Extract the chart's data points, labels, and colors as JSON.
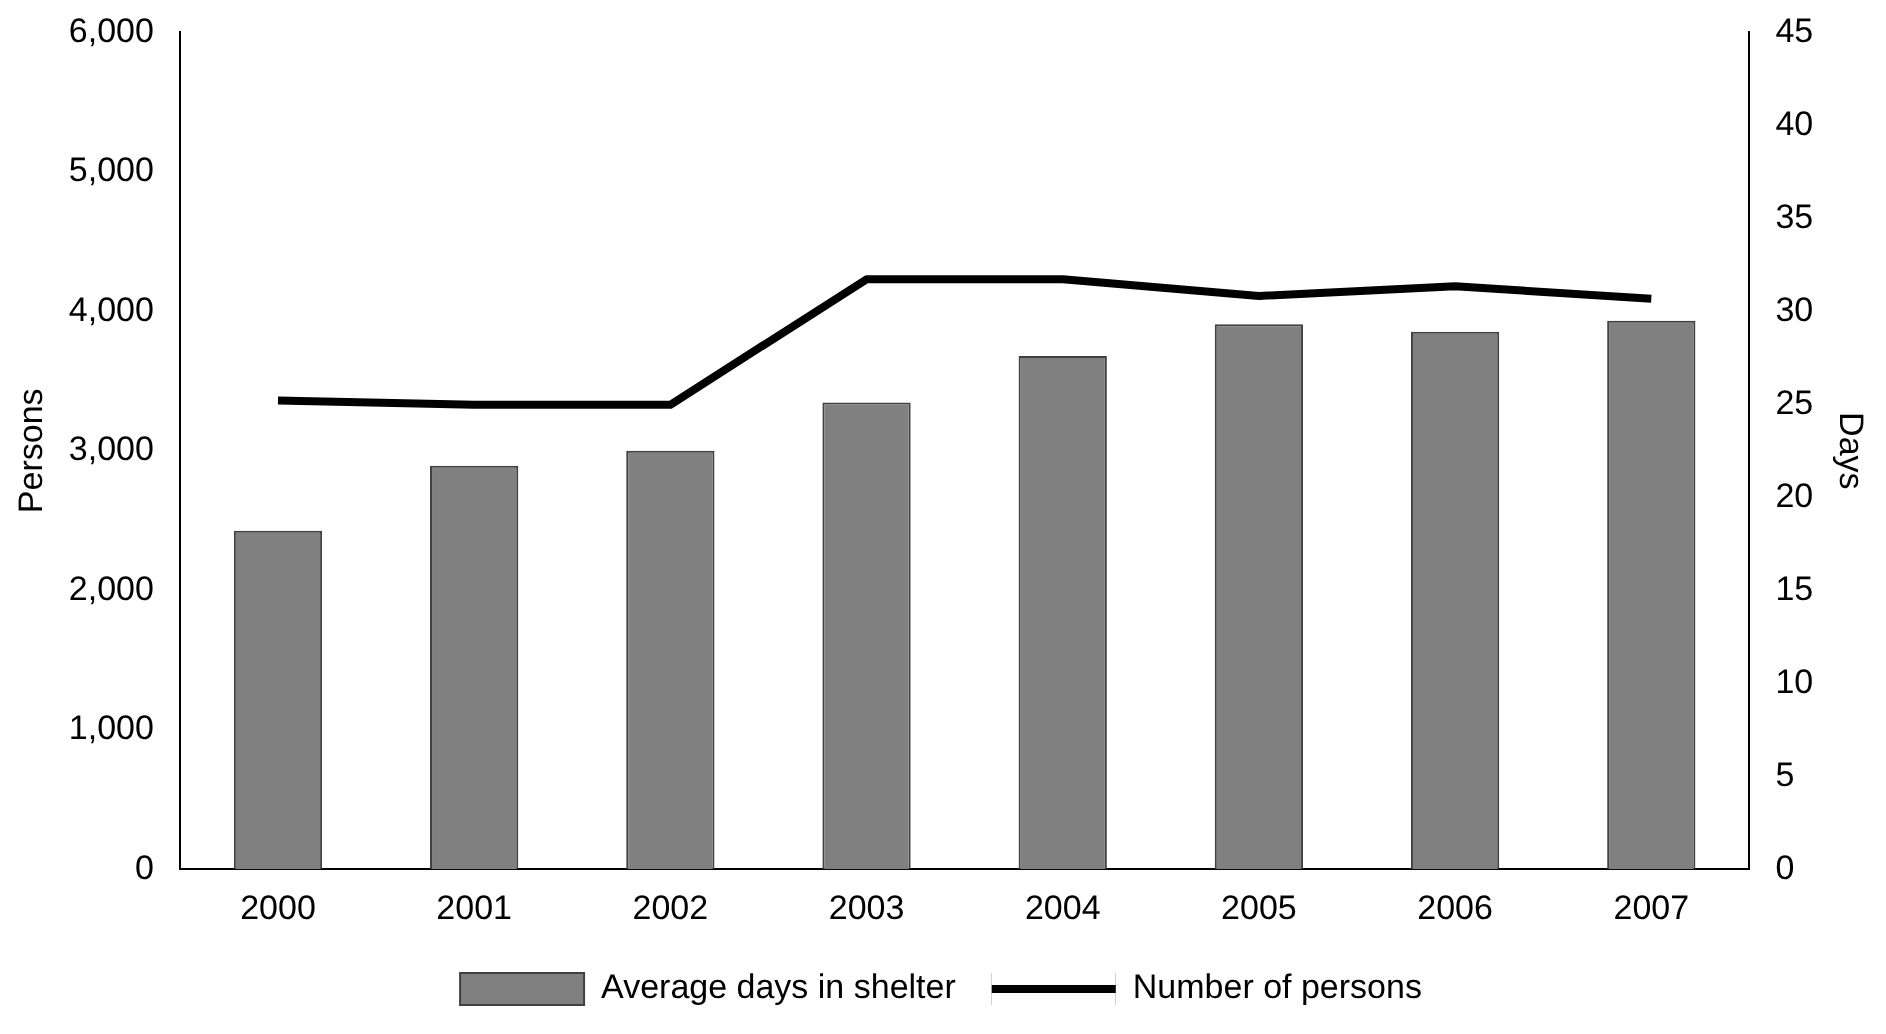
{
  "chart_data": {
    "type": "bar",
    "ylabel": "Persons",
    "y2label": "Days",
    "categories": [
      "2000",
      "2001",
      "2002",
      "2003",
      "2004",
      "2005",
      "2006",
      "2007"
    ],
    "series": [
      {
        "name": "Average days in shelter",
        "axis": "y2",
        "color": "#808080",
        "values": [
          18.2,
          21.7,
          22.5,
          25.1,
          27.6,
          29.3,
          28.9,
          29.5
        ]
      },
      {
        "name": "Number of persons",
        "type": "line",
        "axis": "y",
        "color": "#000000",
        "values": [
          3360,
          3330,
          3330,
          4230,
          4230,
          4110,
          4180,
          4090
        ]
      }
    ],
    "ylim": [
      0,
      6000
    ],
    "yticks": [
      {
        "value": 0,
        "label": "0"
      },
      {
        "value": 1000,
        "label": "1,000"
      },
      {
        "value": 2000,
        "label": "2,000"
      },
      {
        "value": 3000,
        "label": "3,000"
      },
      {
        "value": 4000,
        "label": "4,000"
      },
      {
        "value": 5000,
        "label": "5,000"
      },
      {
        "value": 6000,
        "label": "6,000"
      }
    ],
    "y2lim": [
      0,
      45
    ],
    "y2ticks": [
      0,
      5,
      10,
      15,
      20,
      25,
      30,
      35,
      40,
      45
    ],
    "grid": false,
    "legend": "bottom",
    "marker": "none",
    "line_style": "solid"
  }
}
